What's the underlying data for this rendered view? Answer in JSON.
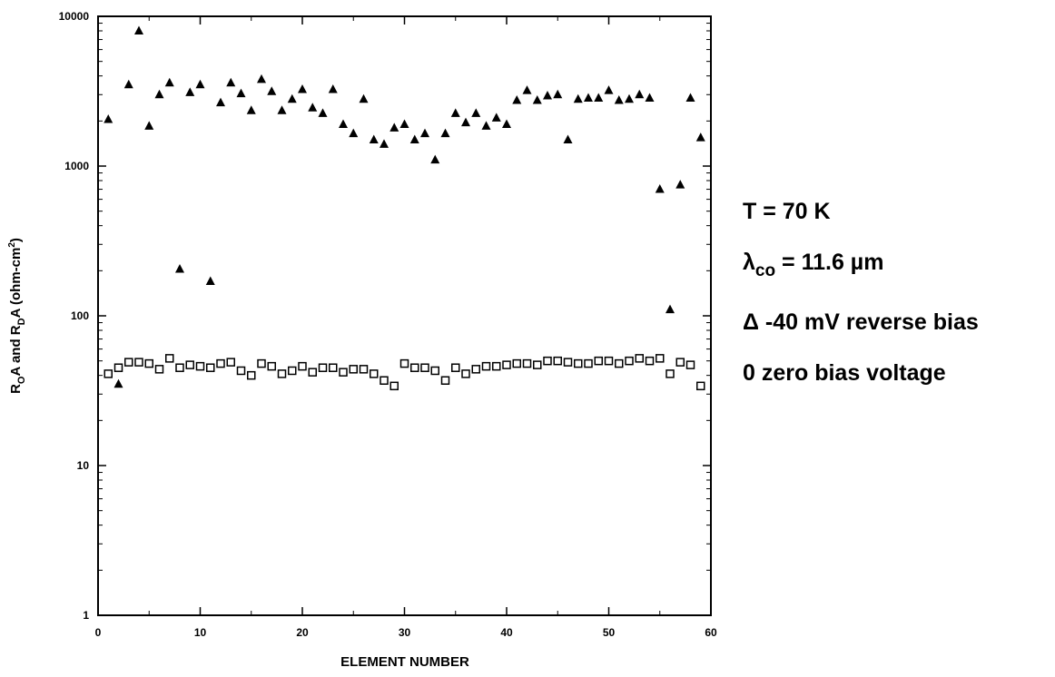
{
  "chart_data": {
    "type": "scatter",
    "xlabel": "ELEMENT NUMBER",
    "ylabel": {
      "r1": "R",
      "r1_sub": "O",
      "mid": "A and R",
      "r2_sub": "D",
      "unit": "A (ohm-cm",
      "unit_sup": "2",
      "close": ")"
    },
    "x_ticks": [
      0,
      10,
      20,
      30,
      40,
      50,
      60
    ],
    "y_ticks": [
      1,
      10,
      100,
      1000,
      10000
    ],
    "y_tick_labels": [
      "1",
      "10",
      "100",
      "1000",
      "10000"
    ],
    "xlim": [
      0,
      60
    ],
    "ylim": [
      1,
      10000
    ],
    "y_scale": "log",
    "grid": false,
    "series": [
      {
        "marker": "filled-triangle",
        "x": [
          1,
          2,
          3,
          4,
          5,
          6,
          7,
          8,
          9,
          10,
          11,
          12,
          13,
          14,
          15,
          16,
          17,
          18,
          19,
          20,
          21,
          22,
          23,
          24,
          25,
          26,
          27,
          28,
          29,
          30,
          31,
          32,
          33,
          34,
          35,
          36,
          37,
          38,
          39,
          40,
          41,
          42,
          43,
          44,
          45,
          46,
          47,
          48,
          49,
          50,
          51,
          52,
          53,
          54,
          55,
          56,
          57,
          58,
          59
        ],
        "values": [
          2050,
          35,
          3500,
          8000,
          1850,
          3000,
          3600,
          205,
          3100,
          3500,
          170,
          2650,
          3600,
          3050,
          2350,
          3800,
          3150,
          2350,
          2800,
          3250,
          2450,
          2250,
          3250,
          1900,
          1650,
          2800,
          1500,
          1400,
          1800,
          1900,
          1500,
          1650,
          1100,
          1650,
          2250,
          1950,
          2250,
          1850,
          2100,
          1900,
          2750,
          3200,
          2750,
          2950,
          3000,
          1500,
          2800,
          2850,
          2850,
          3200,
          2750,
          2800,
          3000,
          2850,
          700,
          110,
          750,
          2850,
          1550
        ]
      },
      {
        "marker": "open-square",
        "x": [
          1,
          2,
          3,
          4,
          5,
          6,
          7,
          8,
          9,
          10,
          11,
          12,
          13,
          14,
          15,
          16,
          17,
          18,
          19,
          20,
          21,
          22,
          23,
          24,
          25,
          26,
          27,
          28,
          29,
          30,
          31,
          32,
          33,
          34,
          35,
          36,
          37,
          38,
          39,
          40,
          41,
          42,
          43,
          44,
          45,
          46,
          47,
          48,
          49,
          50,
          51,
          52,
          53,
          54,
          55,
          56,
          57,
          58,
          59
        ],
        "values": [
          41,
          45,
          49,
          49,
          48,
          44,
          52,
          45,
          47,
          46,
          45,
          48,
          49,
          43,
          40,
          48,
          46,
          41,
          43,
          46,
          42,
          45,
          45,
          42,
          44,
          44,
          41,
          37,
          34,
          48,
          45,
          45,
          43,
          37,
          45,
          41,
          44,
          46,
          46,
          47,
          48,
          48,
          47,
          50,
          50,
          49,
          48,
          48,
          50,
          50,
          48,
          50,
          52,
          50,
          52,
          41,
          49,
          47,
          34
        ]
      }
    ]
  },
  "legend": {
    "temp": "T = 70 K",
    "lambda_symbol": "λ",
    "lambda_sub": "co",
    "lambda_value": " = 11.6 µm",
    "reverse_bias": "Δ  -40 mV reverse bias",
    "zero_bias": "0  zero bias voltage"
  }
}
